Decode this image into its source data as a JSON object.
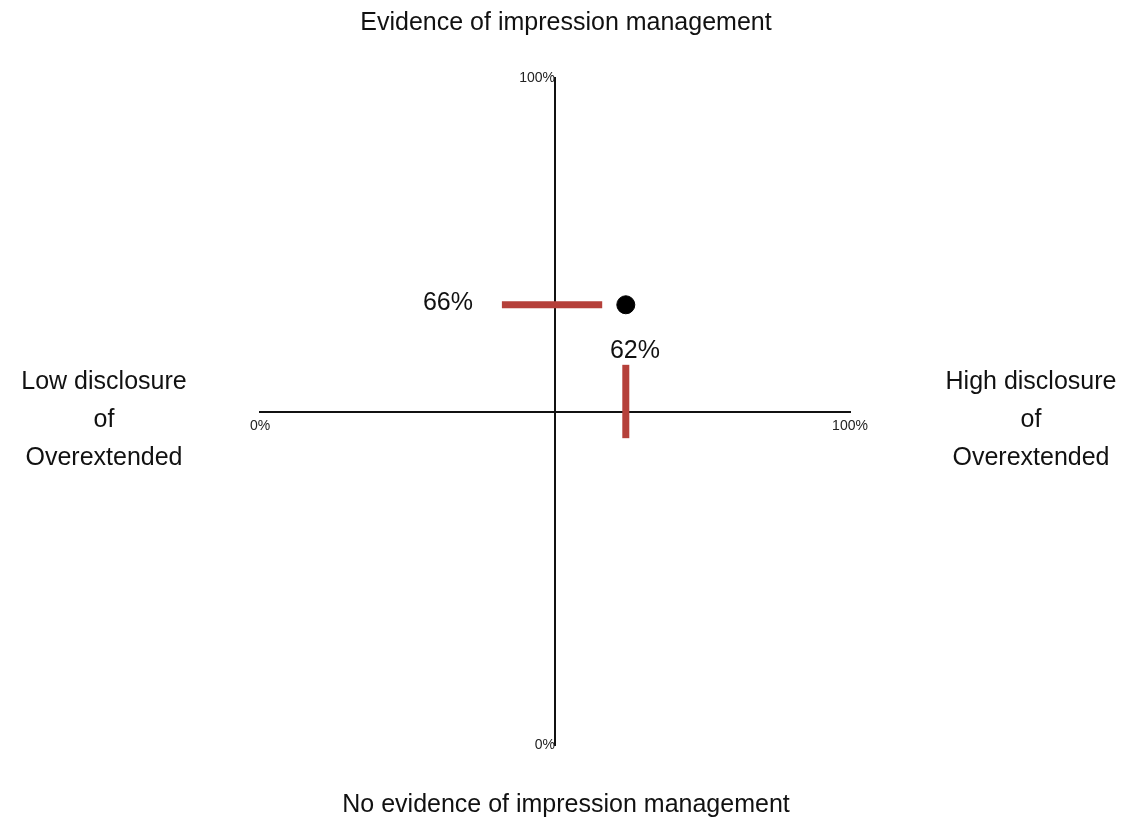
{
  "chart_data": {
    "type": "scatter",
    "series": [
      {
        "type": "line",
        "color": "#b5403a",
        "x": [
          41,
          58
        ],
        "values": [
          66,
          66
        ],
        "marker": "none"
      },
      {
        "type": "line",
        "color": "#b5403a",
        "x": [
          62,
          62
        ],
        "values": [
          46,
          57
        ],
        "marker": "none"
      },
      {
        "color": "#000000",
        "x": [
          62
        ],
        "values": [
          66
        ],
        "marker": "circle"
      }
    ],
    "xlim": [
      0,
      100
    ],
    "ylim": [
      0,
      100
    ],
    "xticks": [
      {
        "value": 0,
        "label": "0%"
      },
      {
        "value": 100,
        "label": "100%"
      }
    ],
    "yticks": [
      {
        "value": 0,
        "label": "0%"
      },
      {
        "value": 100,
        "label": "100%"
      }
    ],
    "grid": false,
    "legend": false,
    "annotations": [
      "Evidence of impression management",
      "No evidence of impression management",
      "Low disclosure of Overextended",
      "High disclosure of Overextended",
      "66%",
      "62%"
    ]
  }
}
